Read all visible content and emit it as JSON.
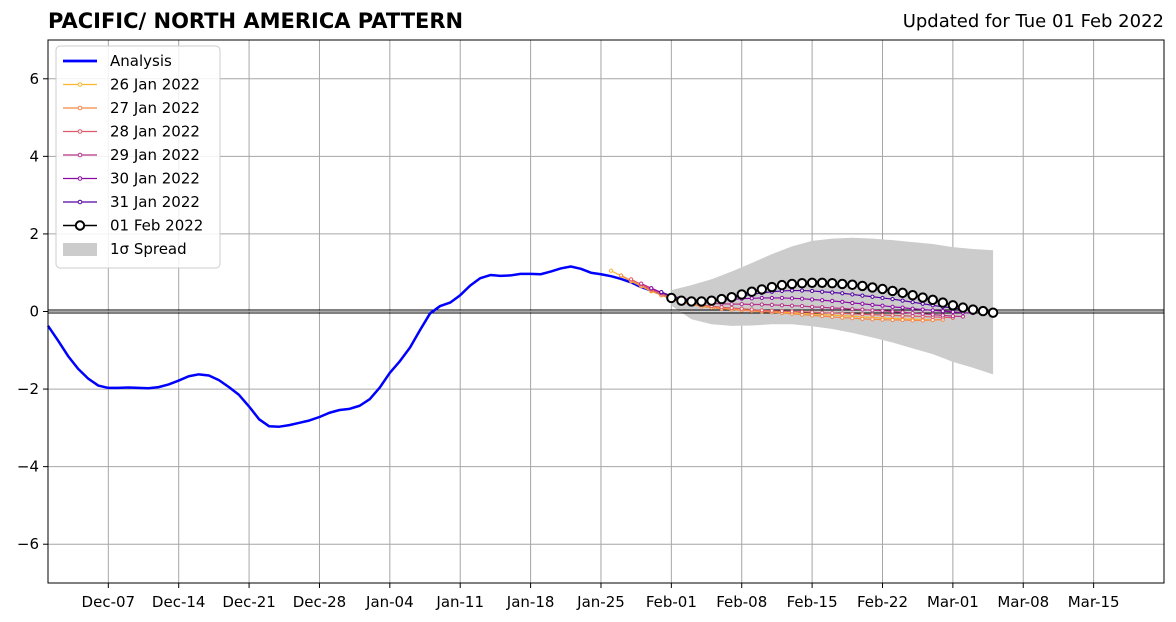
{
  "header": {
    "title": "PACIFIC/ NORTH AMERICA PATTERN",
    "updated": "Updated for Tue 01 Feb 2022"
  },
  "chart_data": {
    "type": "line",
    "title": "PACIFIC/ NORTH AMERICA PATTERN",
    "xlabel": "",
    "ylabel": "",
    "ylim": [
      -7,
      7
    ],
    "xlim": [
      "2021-12-01",
      "2022-03-22"
    ],
    "grid": true,
    "legend_position": "top-left",
    "yticks": [
      6,
      4,
      2,
      0,
      -2,
      -4,
      -6
    ],
    "ytick_labels": [
      "6",
      "4",
      "2",
      "0",
      "−2",
      "−4",
      "−6"
    ],
    "xticks": [
      "2021-12-07",
      "2021-12-14",
      "2021-12-21",
      "2021-12-28",
      "2022-01-04",
      "2022-01-11",
      "2022-01-18",
      "2022-01-25",
      "2022-02-01",
      "2022-02-08",
      "2022-02-15",
      "2022-02-22",
      "2022-03-01",
      "2022-03-08",
      "2022-03-15"
    ],
    "xtick_labels": [
      "Dec-07",
      "Dec-14",
      "Dec-21",
      "Dec-28",
      "Jan-04",
      "Jan-11",
      "Jan-18",
      "Jan-25",
      "Feb-01",
      "Feb-08",
      "Feb-15",
      "Feb-22",
      "Mar-01",
      "Mar-08",
      "Mar-15"
    ],
    "legend": [
      {
        "label": "Analysis",
        "color": "#0000ff",
        "style": "thick-line"
      },
      {
        "label": "26 Jan 2022",
        "color": "#fdb42f",
        "style": "line-dot"
      },
      {
        "label": "27 Jan 2022",
        "color": "#f48849",
        "style": "line-dot"
      },
      {
        "label": "28 Jan 2022",
        "color": "#db5c68",
        "style": "line-dot"
      },
      {
        "label": "29 Jan 2022",
        "color": "#b83289",
        "style": "line-dot"
      },
      {
        "label": "30 Jan 2022",
        "color": "#8b0aa5",
        "style": "line-dot"
      },
      {
        "label": "31 Jan 2022",
        "color": "#5302a3",
        "style": "line-dot"
      },
      {
        "label": "01 Feb 2022",
        "color": "#000000",
        "style": "circle"
      },
      {
        "label": "1σ Spread",
        "color": "#cccccc",
        "style": "patch"
      }
    ],
    "series": [
      {
        "name": "Analysis",
        "color": "#0000ff",
        "x": [
          "2021-12-01",
          "2021-12-02",
          "2021-12-03",
          "2021-12-04",
          "2021-12-05",
          "2021-12-06",
          "2021-12-07",
          "2021-12-08",
          "2021-12-09",
          "2021-12-10",
          "2021-12-11",
          "2021-12-12",
          "2021-12-13",
          "2021-12-14",
          "2021-12-15",
          "2021-12-16",
          "2021-12-17",
          "2021-12-18",
          "2021-12-19",
          "2021-12-20",
          "2021-12-21",
          "2021-12-22",
          "2021-12-23",
          "2021-12-24",
          "2021-12-25",
          "2021-12-26",
          "2021-12-27",
          "2021-12-28",
          "2021-12-29",
          "2021-12-30",
          "2021-12-31",
          "2022-01-01",
          "2022-01-02",
          "2022-01-03",
          "2022-01-04",
          "2022-01-05",
          "2022-01-06",
          "2022-01-07",
          "2022-01-08",
          "2022-01-09",
          "2022-01-10",
          "2022-01-11",
          "2022-01-12",
          "2022-01-13",
          "2022-01-14",
          "2022-01-15",
          "2022-01-16",
          "2022-01-17",
          "2022-01-18",
          "2022-01-19",
          "2022-01-20",
          "2022-01-21",
          "2022-01-22",
          "2022-01-23",
          "2022-01-24",
          "2022-01-25",
          "2022-01-26",
          "2022-01-27",
          "2022-01-28",
          "2022-01-29",
          "2022-01-30",
          "2022-01-31",
          "2022-02-01"
        ],
        "y": [
          -0.37,
          -0.75,
          -1.15,
          -1.48,
          -1.73,
          -1.91,
          -1.97,
          -1.97,
          -1.96,
          -1.97,
          -1.98,
          -1.95,
          -1.88,
          -1.78,
          -1.67,
          -1.62,
          -1.65,
          -1.77,
          -1.95,
          -2.15,
          -2.45,
          -2.78,
          -2.96,
          -2.97,
          -2.93,
          -2.87,
          -2.81,
          -2.72,
          -2.61,
          -2.54,
          -2.51,
          -2.43,
          -2.26,
          -1.96,
          -1.58,
          -1.28,
          -0.93,
          -0.48,
          -0.05,
          0.14,
          0.23,
          0.42,
          0.67,
          0.86,
          0.94,
          0.92,
          0.93,
          0.97,
          0.97,
          0.96,
          1.03,
          1.11,
          1.16,
          1.1,
          1.0,
          0.96,
          0.91,
          0.84,
          0.75,
          0.63,
          0.54,
          0.48,
          0.35
        ]
      },
      {
        "name": "26 Jan 2022",
        "color": "#fdb42f",
        "x": [
          "2022-01-26",
          "2022-01-27",
          "2022-01-28",
          "2022-01-29",
          "2022-01-30",
          "2022-01-31",
          "2022-02-01",
          "2022-02-02",
          "2022-02-03",
          "2022-02-04",
          "2022-02-05",
          "2022-02-06",
          "2022-02-07",
          "2022-02-08",
          "2022-02-09",
          "2022-02-10",
          "2022-02-11",
          "2022-02-12",
          "2022-02-13",
          "2022-02-14",
          "2022-02-15",
          "2022-02-16",
          "2022-02-17",
          "2022-02-18",
          "2022-02-19",
          "2022-02-20",
          "2022-02-21",
          "2022-02-22",
          "2022-02-23",
          "2022-02-24",
          "2022-02-25",
          "2022-02-26",
          "2022-02-27"
        ],
        "y": [
          1.05,
          0.92,
          0.78,
          0.65,
          0.52,
          0.42,
          0.34,
          0.27,
          0.21,
          0.16,
          0.12,
          0.09,
          0.06,
          0.04,
          0.02,
          0.0,
          -0.01,
          -0.02,
          -0.03,
          -0.05,
          -0.06,
          -0.08,
          -0.09,
          -0.11,
          -0.12,
          -0.14,
          -0.15,
          -0.17,
          -0.18,
          -0.19,
          -0.2,
          -0.21,
          -0.22
        ]
      },
      {
        "name": "27 Jan 2022",
        "color": "#f48849",
        "x": [
          "2022-01-27",
          "2022-01-28",
          "2022-01-29",
          "2022-01-30",
          "2022-01-31",
          "2022-02-01",
          "2022-02-02",
          "2022-02-03",
          "2022-02-04",
          "2022-02-05",
          "2022-02-06",
          "2022-02-07",
          "2022-02-08",
          "2022-02-09",
          "2022-02-10",
          "2022-02-11",
          "2022-02-12",
          "2022-02-13",
          "2022-02-14",
          "2022-02-15",
          "2022-02-16",
          "2022-02-17",
          "2022-02-18",
          "2022-02-19",
          "2022-02-20",
          "2022-02-21",
          "2022-02-22",
          "2022-02-23",
          "2022-02-24",
          "2022-02-25",
          "2022-02-26",
          "2022-02-27",
          "2022-02-28"
        ],
        "y": [
          0.93,
          0.8,
          0.66,
          0.54,
          0.42,
          0.32,
          0.24,
          0.18,
          0.13,
          0.1,
          0.07,
          0.05,
          0.03,
          0.02,
          0.0,
          -0.02,
          -0.04,
          -0.06,
          -0.08,
          -0.1,
          -0.12,
          -0.14,
          -0.16,
          -0.17,
          -0.19,
          -0.2,
          -0.21,
          -0.22,
          -0.22,
          -0.23,
          -0.23,
          -0.22,
          -0.21
        ]
      },
      {
        "name": "28 Jan 2022",
        "color": "#db5c68",
        "x": [
          "2022-01-28",
          "2022-01-29",
          "2022-01-30",
          "2022-01-31",
          "2022-02-01",
          "2022-02-02",
          "2022-02-03",
          "2022-02-04",
          "2022-02-05",
          "2022-02-06",
          "2022-02-07",
          "2022-02-08",
          "2022-02-09",
          "2022-02-10",
          "2022-02-11",
          "2022-02-12",
          "2022-02-13",
          "2022-02-14",
          "2022-02-15",
          "2022-02-16",
          "2022-02-17",
          "2022-02-18",
          "2022-02-19",
          "2022-02-20",
          "2022-02-21",
          "2022-02-22",
          "2022-02-23",
          "2022-02-24",
          "2022-02-25",
          "2022-02-26",
          "2022-02-27",
          "2022-02-28",
          "2022-03-01"
        ],
        "y": [
          0.83,
          0.7,
          0.57,
          0.46,
          0.36,
          0.28,
          0.22,
          0.17,
          0.14,
          0.11,
          0.09,
          0.07,
          0.05,
          0.03,
          0.02,
          0.01,
          0.0,
          -0.01,
          -0.02,
          -0.03,
          -0.04,
          -0.05,
          -0.06,
          -0.07,
          -0.08,
          -0.09,
          -0.1,
          -0.11,
          -0.12,
          -0.13,
          -0.14,
          -0.15,
          -0.16
        ]
      },
      {
        "name": "29 Jan 2022",
        "color": "#b83289",
        "x": [
          "2022-01-29",
          "2022-01-30",
          "2022-01-31",
          "2022-02-01",
          "2022-02-02",
          "2022-02-03",
          "2022-02-04",
          "2022-02-05",
          "2022-02-06",
          "2022-02-07",
          "2022-02-08",
          "2022-02-09",
          "2022-02-10",
          "2022-02-11",
          "2022-02-12",
          "2022-02-13",
          "2022-02-14",
          "2022-02-15",
          "2022-02-16",
          "2022-02-17",
          "2022-02-18",
          "2022-02-19",
          "2022-02-20",
          "2022-02-21",
          "2022-02-22",
          "2022-02-23",
          "2022-02-24",
          "2022-02-25",
          "2022-02-26",
          "2022-02-27",
          "2022-02-28",
          "2022-03-01",
          "2022-03-02"
        ],
        "y": [
          0.72,
          0.6,
          0.49,
          0.4,
          0.33,
          0.28,
          0.24,
          0.21,
          0.2,
          0.19,
          0.19,
          0.18,
          0.18,
          0.17,
          0.16,
          0.15,
          0.14,
          0.12,
          0.11,
          0.09,
          0.08,
          0.06,
          0.05,
          0.03,
          0.02,
          0.0,
          -0.02,
          -0.04,
          -0.06,
          -0.08,
          -0.1,
          -0.12,
          -0.13
        ]
      },
      {
        "name": "30 Jan 2022",
        "color": "#8b0aa5",
        "x": [
          "2022-01-30",
          "2022-01-31",
          "2022-02-01",
          "2022-02-02",
          "2022-02-03",
          "2022-02-04",
          "2022-02-05",
          "2022-02-06",
          "2022-02-07",
          "2022-02-08",
          "2022-02-09",
          "2022-02-10",
          "2022-02-11",
          "2022-02-12",
          "2022-02-13",
          "2022-02-14",
          "2022-02-15",
          "2022-02-16",
          "2022-02-17",
          "2022-02-18",
          "2022-02-19",
          "2022-02-20",
          "2022-02-21",
          "2022-02-22",
          "2022-02-23",
          "2022-02-24",
          "2022-02-25",
          "2022-02-26",
          "2022-02-27",
          "2022-02-28",
          "2022-03-01",
          "2022-03-02",
          "2022-03-03"
        ],
        "y": [
          0.6,
          0.49,
          0.4,
          0.34,
          0.3,
          0.29,
          0.29,
          0.3,
          0.31,
          0.33,
          0.34,
          0.35,
          0.35,
          0.35,
          0.34,
          0.33,
          0.31,
          0.29,
          0.27,
          0.25,
          0.22,
          0.2,
          0.17,
          0.15,
          0.12,
          0.1,
          0.07,
          0.05,
          0.03,
          0.01,
          -0.01,
          -0.03,
          -0.04
        ]
      },
      {
        "name": "31 Jan 2022",
        "color": "#5302a3",
        "x": [
          "2022-01-31",
          "2022-02-01",
          "2022-02-02",
          "2022-02-03",
          "2022-02-04",
          "2022-02-05",
          "2022-02-06",
          "2022-02-07",
          "2022-02-08",
          "2022-02-09",
          "2022-02-10",
          "2022-02-11",
          "2022-02-12",
          "2022-02-13",
          "2022-02-14",
          "2022-02-15",
          "2022-02-16",
          "2022-02-17",
          "2022-02-18",
          "2022-02-19",
          "2022-02-20",
          "2022-02-21",
          "2022-02-22",
          "2022-02-23",
          "2022-02-24",
          "2022-02-25",
          "2022-02-26",
          "2022-02-27",
          "2022-02-28",
          "2022-03-01",
          "2022-03-02",
          "2022-03-03",
          "2022-03-04"
        ],
        "y": [
          0.5,
          0.4,
          0.33,
          0.29,
          0.28,
          0.29,
          0.31,
          0.35,
          0.4,
          0.44,
          0.48,
          0.51,
          0.53,
          0.54,
          0.54,
          0.53,
          0.51,
          0.49,
          0.47,
          0.44,
          0.41,
          0.38,
          0.35,
          0.32,
          0.28,
          0.24,
          0.2,
          0.16,
          0.12,
          0.09,
          0.06,
          0.03,
          0.01
        ]
      },
      {
        "name": "01 Feb 2022",
        "color": "#000000",
        "x": [
          "2022-02-01",
          "2022-02-02",
          "2022-02-03",
          "2022-02-04",
          "2022-02-05",
          "2022-02-06",
          "2022-02-07",
          "2022-02-08",
          "2022-02-09",
          "2022-02-10",
          "2022-02-11",
          "2022-02-12",
          "2022-02-13",
          "2022-02-14",
          "2022-02-15",
          "2022-02-16",
          "2022-02-17",
          "2022-02-18",
          "2022-02-19",
          "2022-02-20",
          "2022-02-21",
          "2022-02-22",
          "2022-02-23",
          "2022-02-24",
          "2022-02-25",
          "2022-02-26",
          "2022-02-27",
          "2022-02-28",
          "2022-03-01",
          "2022-03-02",
          "2022-03-03",
          "2022-03-04",
          "2022-03-05"
        ],
        "y": [
          0.35,
          0.28,
          0.26,
          0.26,
          0.28,
          0.32,
          0.37,
          0.44,
          0.51,
          0.57,
          0.63,
          0.68,
          0.71,
          0.73,
          0.74,
          0.74,
          0.73,
          0.71,
          0.69,
          0.66,
          0.62,
          0.58,
          0.53,
          0.48,
          0.42,
          0.36,
          0.3,
          0.23,
          0.16,
          0.1,
          0.05,
          0.01,
          -0.03
        ]
      }
    ],
    "spread": {
      "name": "1σ Spread",
      "color": "#cccccc",
      "x": [
        "2022-02-01",
        "2022-02-03",
        "2022-02-05",
        "2022-02-07",
        "2022-02-09",
        "2022-02-11",
        "2022-02-13",
        "2022-02-15",
        "2022-02-17",
        "2022-02-19",
        "2022-02-21",
        "2022-02-23",
        "2022-02-25",
        "2022-02-27",
        "2022-03-01",
        "2022-03-03",
        "2022-03-05"
      ],
      "upper": [
        0.55,
        0.68,
        0.83,
        1.03,
        1.25,
        1.48,
        1.68,
        1.82,
        1.88,
        1.9,
        1.88,
        1.84,
        1.79,
        1.74,
        1.66,
        1.61,
        1.58
      ],
      "lower": [
        0.15,
        -0.2,
        -0.33,
        -0.37,
        -0.36,
        -0.33,
        -0.33,
        -0.38,
        -0.45,
        -0.55,
        -0.67,
        -0.8,
        -0.95,
        -1.1,
        -1.3,
        -1.45,
        -1.62
      ]
    }
  }
}
